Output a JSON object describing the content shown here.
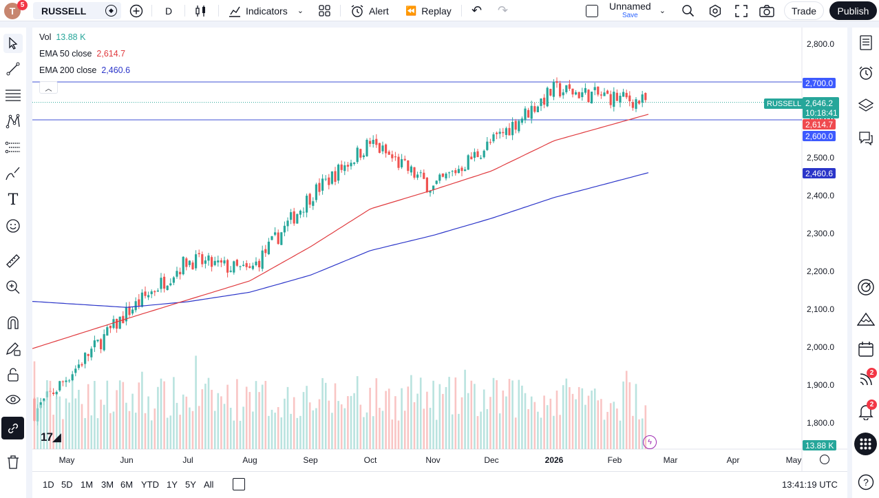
{
  "topbar": {
    "avatar_letter": "T",
    "avatar_badge": "5",
    "symbol": "RUSSELL",
    "interval": "D",
    "indicators_label": "Indicators",
    "alert_label": "Alert",
    "replay_label": "Replay",
    "layout_name": "Unnamed",
    "layout_sub": "Save",
    "trade_label": "Trade",
    "publish_label": "Publish"
  },
  "legend": {
    "vol_label": "Vol",
    "vol_value": "13.88 K",
    "ema50_label": "EMA 50 close",
    "ema50_value": "2,614.7",
    "ema200_label": "EMA 200 close",
    "ema200_value": "2,460.6"
  },
  "price_axis": {
    "ticks": [
      "2,800.0",
      "2,700.0",
      "2,600.0",
      "2,500.0",
      "2,400.0",
      "2,300.0",
      "2,200.0",
      "2,100.0",
      "2,000.0",
      "1,900.0",
      "1,800.0"
    ],
    "hline_upper": "2,700.0",
    "hline_lower": "2,600.0",
    "symbol_tag": "RUSSELL",
    "last_price": "2,646.2",
    "countdown": "10:18:41",
    "ema50_tag": "2,614.7",
    "ema200_tag": "2,460.6",
    "volume_tag": "13.88 K"
  },
  "time_axis": {
    "ticks": [
      "May",
      "Jun",
      "Jul",
      "Aug",
      "Sep",
      "Oct",
      "Nov",
      "Dec",
      "2026",
      "Feb",
      "Mar",
      "Apr",
      "May"
    ]
  },
  "bottombar": {
    "ranges": [
      "1D",
      "5D",
      "1M",
      "3M",
      "6M",
      "YTD",
      "1Y",
      "5Y",
      "All"
    ],
    "clock": "13:41:19 UTC"
  },
  "rightbar": {
    "badge_a": "2",
    "badge_b": "2"
  },
  "colors": {
    "up": "#26a69a",
    "down": "#ef5350",
    "ema50": "#e03a3e",
    "ema200": "#2b35c9",
    "hline": "#3d4fd6"
  },
  "chart_data": {
    "type": "candlestick",
    "series": [
      {
        "name": "EMA 50 close",
        "x": [
          "May",
          "Jun",
          "Jul",
          "Aug",
          "Sep",
          "Oct",
          "Nov",
          "Dec",
          "2026",
          "Feb"
        ],
        "values": [
          2025,
          2075,
          2125,
          2175,
          2265,
          2365,
          2415,
          2465,
          2545,
          2614.7
        ]
      },
      {
        "name": "EMA 200 close",
        "x": [
          "May",
          "Jun",
          "Jul",
          "Aug",
          "Sep",
          "Oct",
          "Nov",
          "Dec",
          "2026",
          "Feb"
        ],
        "values": [
          2115,
          2105,
          2120,
          2145,
          2190,
          2255,
          2295,
          2340,
          2395,
          2460.6
        ]
      }
    ],
    "close_path": {
      "x": [
        "May",
        "Jun",
        "Jul",
        "Aug",
        "Sep",
        "Oct",
        "Nov",
        "Dec",
        "2026",
        "Feb"
      ],
      "values": [
        1920,
        2090,
        2230,
        2200,
        2400,
        2540,
        2420,
        2540,
        2680,
        2646.2
      ]
    },
    "ylim": [
      1770,
      2830
    ],
    "last_close": 2646.2,
    "horizontal_lines": [
      2700.0,
      2600.0
    ]
  }
}
